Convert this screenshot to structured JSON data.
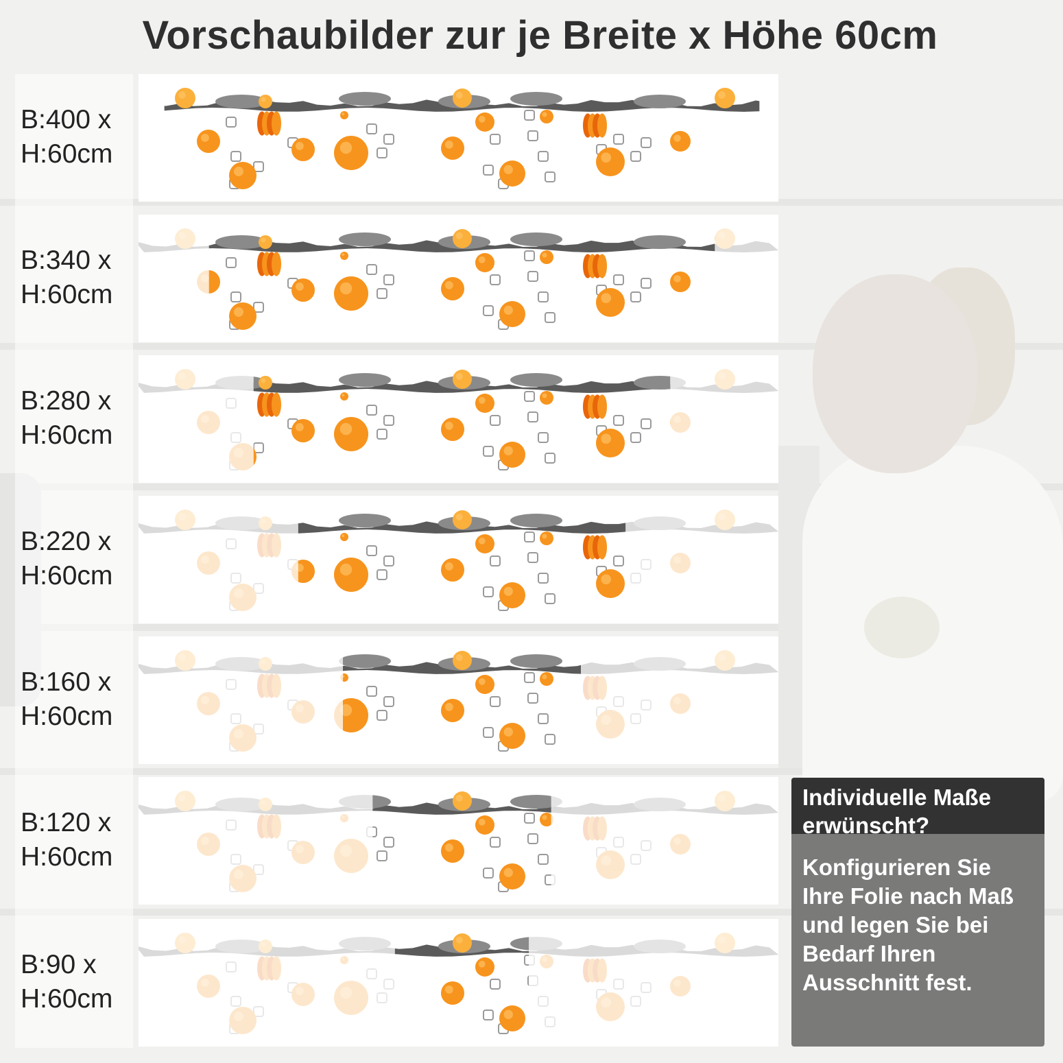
{
  "title": "Vorschaubilder zur je Breite x Höhe 60cm",
  "rows": [
    {
      "width_label": "B:400 x",
      "height_label": "H:60cm",
      "visible_fraction": 1.0
    },
    {
      "width_label": "B:340 x",
      "height_label": "H:60cm",
      "visible_fraction": 0.85
    },
    {
      "width_label": "B:280 x",
      "height_label": "H:60cm",
      "visible_fraction": 0.7
    },
    {
      "width_label": "B:220 x",
      "height_label": "H:60cm",
      "visible_fraction": 0.55
    },
    {
      "width_label": "B:160 x",
      "height_label": "H:60cm",
      "visible_fraction": 0.4
    },
    {
      "width_label": "B:120 x",
      "height_label": "H:60cm",
      "visible_fraction": 0.3
    },
    {
      "width_label": "B:90 x",
      "height_label": "H:60cm",
      "visible_fraction": 0.225
    }
  ],
  "info": {
    "heading": "Individuelle Maße erwünscht?",
    "body": "Konfigurieren Sie Ihre Folie nach Maß und legen Sie bei Bedarf Ihren Ausschnitt fest."
  },
  "colors": {
    "orange": "#f7941d",
    "orange_dark": "#e8660a",
    "water": "#5a5a5a",
    "header_bg": "#323232",
    "body_bg": "#7a7a79"
  }
}
